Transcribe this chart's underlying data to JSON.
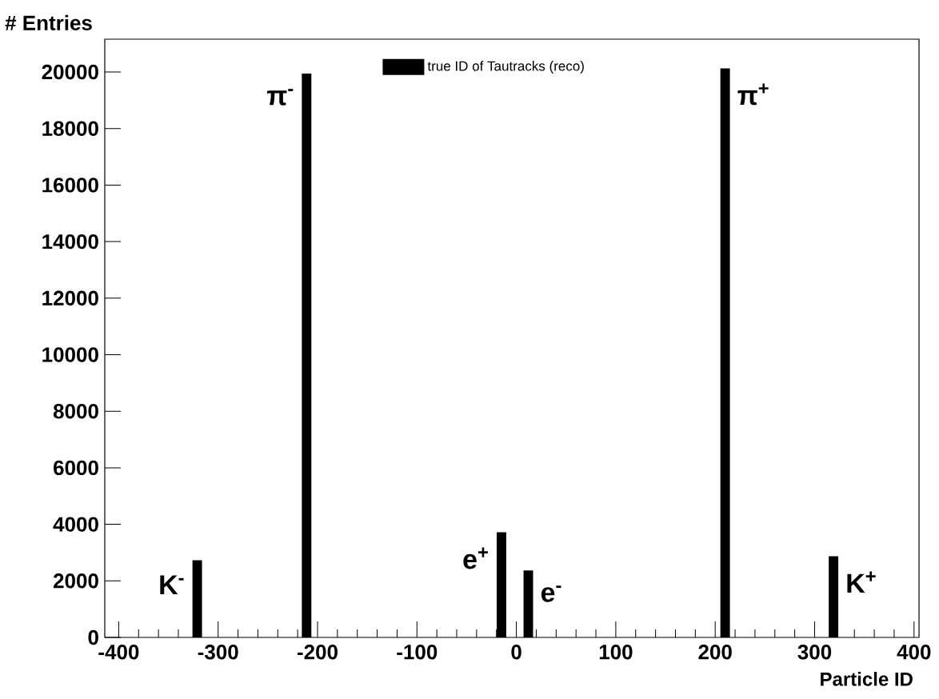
{
  "chart_data": {
    "type": "bar",
    "xlabel": "Particle ID",
    "ylabel": "# Entries",
    "x": [
      -321,
      -211,
      -15,
      12,
      210,
      319
    ],
    "series": [
      {
        "name": "true ID of Tautracks (reco)",
        "color": "#000000",
        "values": [
          2730,
          19940,
          3720,
          2370,
          20130,
          2870
        ]
      }
    ],
    "xlim": [
      -414,
      405
    ],
    "xticks": [
      -400,
      -300,
      -200,
      -100,
      0,
      100,
      200,
      300,
      400
    ],
    "ylim": [
      0,
      21160
    ],
    "yticks": [
      0,
      2000,
      4000,
      6000,
      8000,
      10000,
      12000,
      14000,
      16000,
      18000,
      20000
    ],
    "legend": "top",
    "grid": false,
    "annotations": [
      {
        "text": "K$^{-}$",
        "x": -321,
        "y": 2730
      },
      {
        "text": "π$^{-}$",
        "x": -211,
        "y": 19940
      },
      {
        "text": "e$^{+}$",
        "x": -15,
        "y": 3720
      },
      {
        "text": "e$^{-}$",
        "x": 12,
        "y": 2370
      },
      {
        "text": "π$^{+}$",
        "x": 210,
        "y": 20130
      },
      {
        "text": "K$^{+}$",
        "x": 319,
        "y": 2870
      }
    ]
  }
}
